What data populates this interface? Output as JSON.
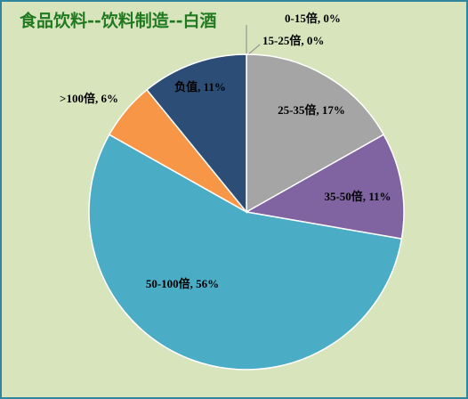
{
  "chart_data": {
    "type": "pie",
    "title": "食品饮料--饮料制造--白酒",
    "values": [
      0,
      0,
      17,
      11,
      56,
      6,
      11
    ],
    "value_labels": [
      "0-15倍, 0%",
      "15-25倍, 0%",
      "25-35倍, 17%",
      "35-50倍, 11%",
      "50-100倍, 56%",
      ">100倍, 6%",
      "负值, 11%"
    ],
    "colors": [
      "#4f81bd",
      "#c0504d",
      "#a5a5a5",
      "#8064a2",
      "#4bacc6",
      "#f79646",
      "#2c4d75"
    ]
  }
}
